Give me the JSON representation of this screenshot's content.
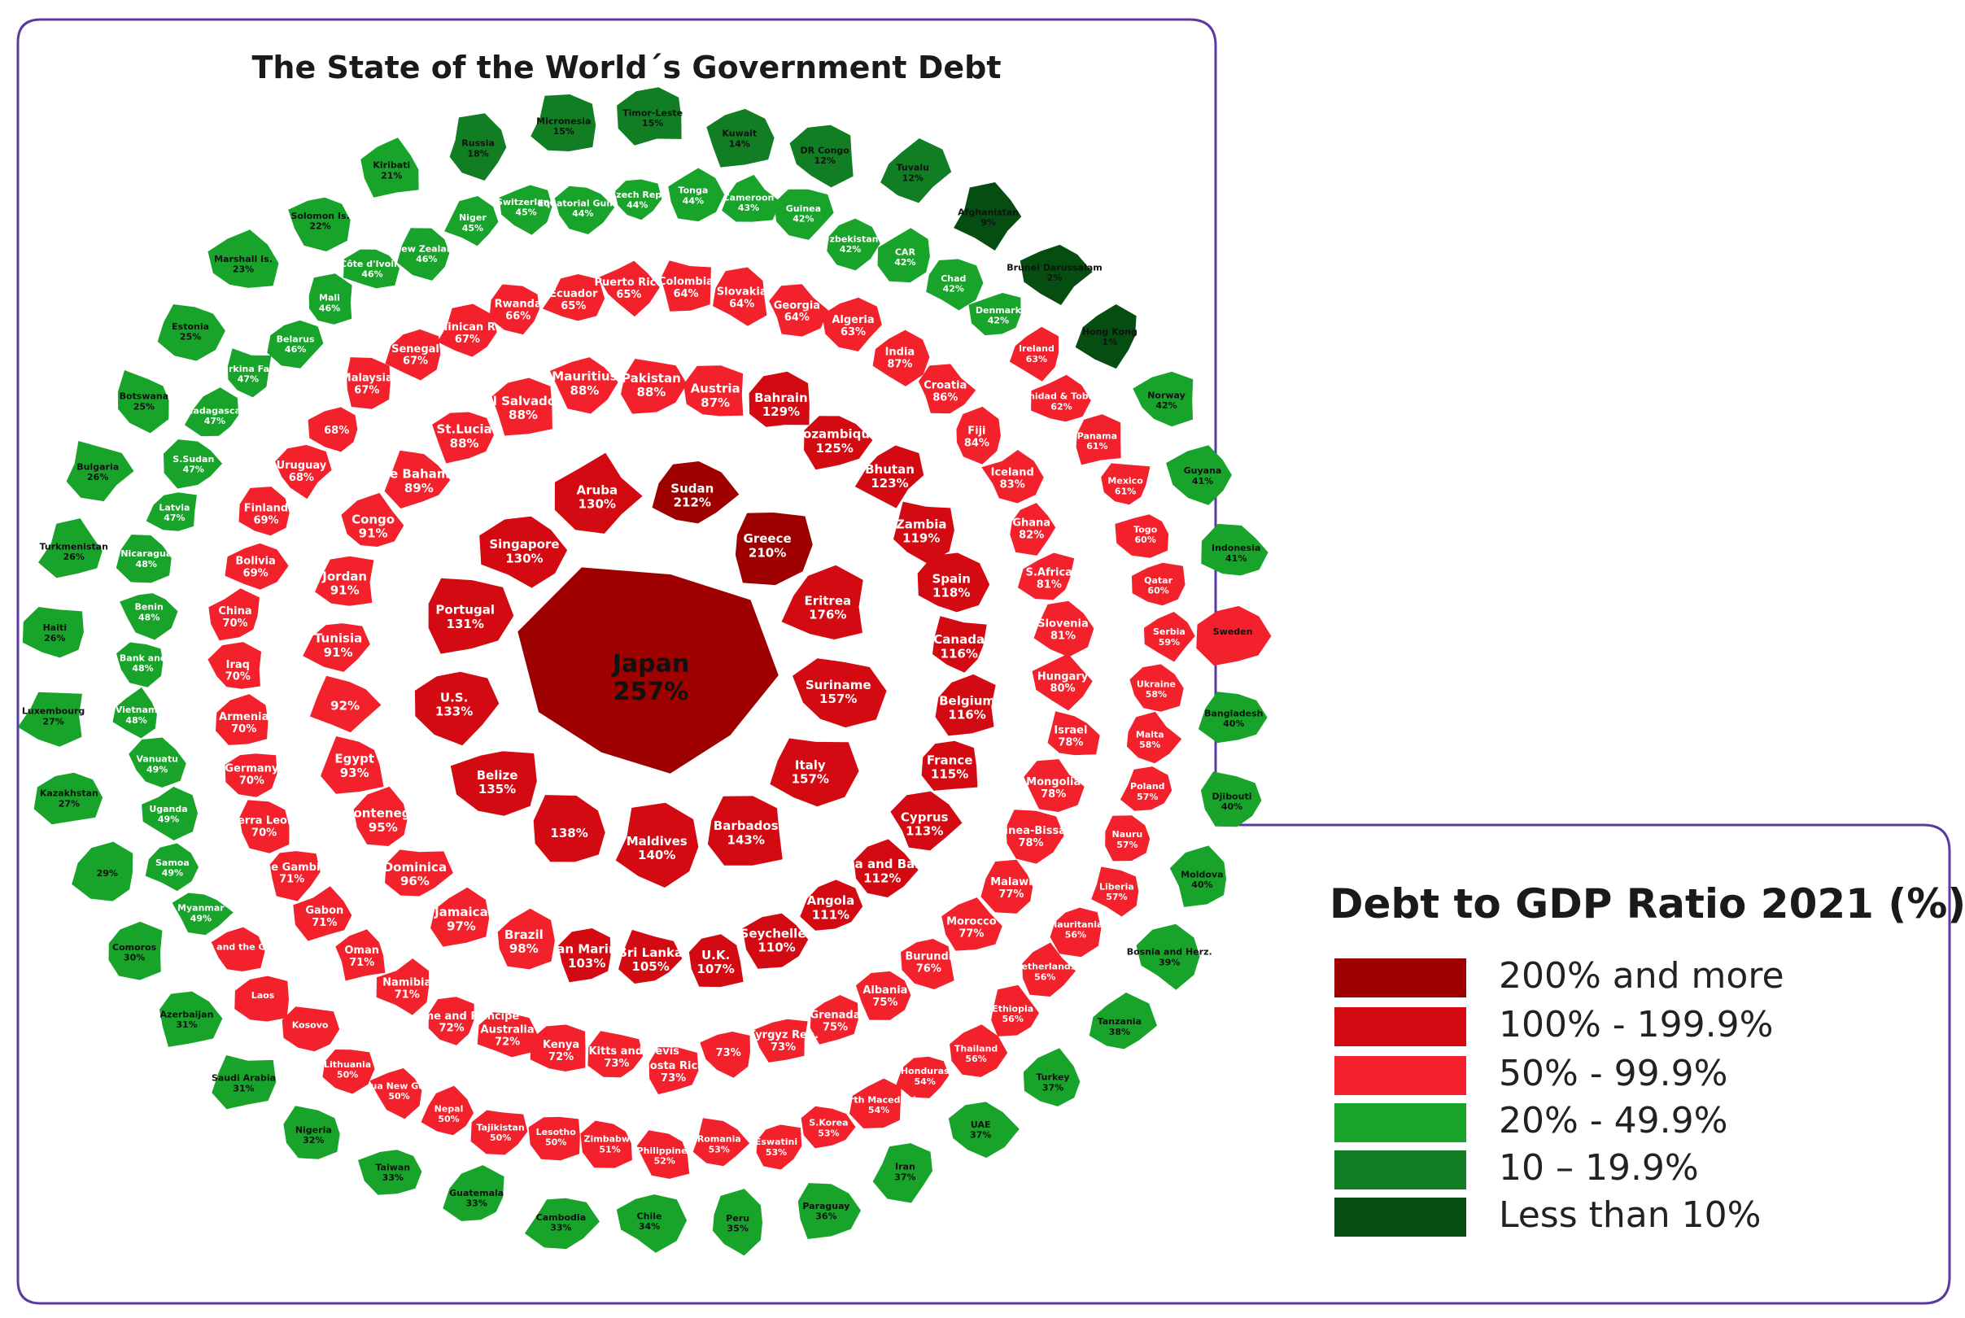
{
  "title": "The State of the World´s Government Debt",
  "legend": {
    "title": "Debt to GDP Ratio 2021 (%)",
    "items": [
      {
        "label": "200% and more",
        "color": "#9e0000"
      },
      {
        "label": "100% - 199.9%",
        "color": "#d40a12"
      },
      {
        "label": "50% - 99.9%",
        "color": "#f2212b"
      },
      {
        "label": "20% - 49.9%",
        "color": "#18a32a"
      },
      {
        "label": "10 – 19.9%",
        "color": "#117e24"
      },
      {
        "label": "Less than 10%",
        "color": "#064d12"
      }
    ]
  },
  "chart_data": {
    "type": "map",
    "title": "The State of the World´s Government Debt",
    "unit": "% of GDP, 2021",
    "countries": [
      {
        "name": "Japan",
        "value": "257%"
      },
      {
        "name": "Sudan",
        "value": "212%"
      },
      {
        "name": "Greece",
        "value": "210%"
      },
      {
        "name": "Eritrea",
        "value": "176%"
      },
      {
        "name": "Suriname",
        "value": "157%"
      },
      {
        "name": "Italy",
        "value": "157%"
      },
      {
        "name": "Barbados",
        "value": "143%"
      },
      {
        "name": "Maldives",
        "value": "140%"
      },
      {
        "name": "",
        "value": "138%"
      },
      {
        "name": "Belize",
        "value": "135%"
      },
      {
        "name": "U.S.",
        "value": "133%"
      },
      {
        "name": "Portugal",
        "value": "131%"
      },
      {
        "name": "Singapore",
        "value": "130%"
      },
      {
        "name": "Aruba",
        "value": "130%"
      },
      {
        "name": "Bahrain",
        "value": "129%"
      },
      {
        "name": "Mozambique",
        "value": "125%"
      },
      {
        "name": "Bhutan",
        "value": "123%"
      },
      {
        "name": "Zambia",
        "value": "119%"
      },
      {
        "name": "Spain",
        "value": "118%"
      },
      {
        "name": "Canada",
        "value": "116%"
      },
      {
        "name": "Belgium",
        "value": "116%"
      },
      {
        "name": "France",
        "value": "115%"
      },
      {
        "name": "Cyprus",
        "value": "113%"
      },
      {
        "name": "Antigua and Barbuda",
        "value": "112%"
      },
      {
        "name": "Angola",
        "value": "111%"
      },
      {
        "name": "Seychelles",
        "value": "110%"
      },
      {
        "name": "U.K.",
        "value": "107%"
      },
      {
        "name": "Sri Lanka",
        "value": "105%"
      },
      {
        "name": "San Marino",
        "value": "103%"
      },
      {
        "name": "Brazil",
        "value": "98%"
      },
      {
        "name": "Jamaica",
        "value": "97%"
      },
      {
        "name": "Dominica",
        "value": "96%"
      },
      {
        "name": "Montenegro",
        "value": "95%"
      },
      {
        "name": "Egypt",
        "value": "93%"
      },
      {
        "name": "",
        "value": "92%"
      },
      {
        "name": "Tunisia",
        "value": "91%"
      },
      {
        "name": "Jordan",
        "value": "91%"
      },
      {
        "name": "Congo",
        "value": "91%"
      },
      {
        "name": "The Bahamas",
        "value": "89%"
      },
      {
        "name": "St.Lucia",
        "value": "88%"
      },
      {
        "name": "El Salvador",
        "value": "88%"
      },
      {
        "name": "Mauritius",
        "value": "88%"
      },
      {
        "name": "Pakistan",
        "value": "88%"
      },
      {
        "name": "Austria",
        "value": "87%"
      },
      {
        "name": "India",
        "value": "87%"
      },
      {
        "name": "Croatia",
        "value": "86%"
      },
      {
        "name": "Fiji",
        "value": "84%"
      },
      {
        "name": "Iceland",
        "value": "83%"
      },
      {
        "name": "Ghana",
        "value": "82%"
      },
      {
        "name": "S.Africa",
        "value": "81%"
      },
      {
        "name": "Slovenia",
        "value": "81%"
      },
      {
        "name": "Hungary",
        "value": "80%"
      },
      {
        "name": "Israel",
        "value": "78%"
      },
      {
        "name": "Mongolia",
        "value": "78%"
      },
      {
        "name": "Guinea-Bissau",
        "value": "78%"
      },
      {
        "name": "Malawi",
        "value": "77%"
      },
      {
        "name": "Morocco",
        "value": "77%"
      },
      {
        "name": "Burundi",
        "value": "76%"
      },
      {
        "name": "Albania",
        "value": "75%"
      },
      {
        "name": "Grenada",
        "value": "75%"
      },
      {
        "name": "Kyrgyz Rep.",
        "value": "73%"
      },
      {
        "name": "",
        "value": "73%"
      },
      {
        "name": "Costa Rica",
        "value": "73%"
      },
      {
        "name": "Saint Kitts and Nevis",
        "value": "73%"
      },
      {
        "name": "Kenya",
        "value": "72%"
      },
      {
        "name": "Australia",
        "value": "72%"
      },
      {
        "name": "Sao Tome and Principe",
        "value": "72%"
      },
      {
        "name": "Namibia",
        "value": "71%"
      },
      {
        "name": "Oman",
        "value": "71%"
      },
      {
        "name": "Gabon",
        "value": "71%"
      },
      {
        "name": "The Gambia",
        "value": "71%"
      },
      {
        "name": "Sierra Leone",
        "value": "70%"
      },
      {
        "name": "Germany",
        "value": "70%"
      },
      {
        "name": "Armenia",
        "value": "70%"
      },
      {
        "name": "Iraq",
        "value": "70%"
      },
      {
        "name": "China",
        "value": "70%"
      },
      {
        "name": "Bolivia",
        "value": "69%"
      },
      {
        "name": "Finland",
        "value": "69%"
      },
      {
        "name": "Uruguay",
        "value": "68%"
      },
      {
        "name": "",
        "value": "68%"
      },
      {
        "name": "Malaysia",
        "value": "67%"
      },
      {
        "name": "Senegal",
        "value": "67%"
      },
      {
        "name": "Dominican Rep.",
        "value": "67%"
      },
      {
        "name": "Rwanda",
        "value": "66%"
      },
      {
        "name": "Ecuador",
        "value": "65%"
      },
      {
        "name": "Puerto Rico",
        "value": "65%"
      },
      {
        "name": "Colombia",
        "value": "64%"
      },
      {
        "name": "Slovakia",
        "value": "64%"
      },
      {
        "name": "Georgia",
        "value": "64%"
      },
      {
        "name": "Algeria",
        "value": "63%"
      },
      {
        "name": "Ireland",
        "value": "63%"
      },
      {
        "name": "Trinidad & Tobago",
        "value": "62%"
      },
      {
        "name": "Panama",
        "value": "61%"
      },
      {
        "name": "Mexico",
        "value": "61%"
      },
      {
        "name": "Togo",
        "value": "60%"
      },
      {
        "name": "Qatar",
        "value": "60%"
      },
      {
        "name": "Serbia",
        "value": "59%"
      },
      {
        "name": "Ukraine",
        "value": "58%"
      },
      {
        "name": "Malta",
        "value": "58%"
      },
      {
        "name": "Poland",
        "value": "57%"
      },
      {
        "name": "Nauru",
        "value": "57%"
      },
      {
        "name": "Liberia",
        "value": "57%"
      },
      {
        "name": "Mauritania",
        "value": "56%"
      },
      {
        "name": "Netherlands",
        "value": "56%"
      },
      {
        "name": "Ethiopia",
        "value": "56%"
      },
      {
        "name": "Thailand",
        "value": "56%"
      },
      {
        "name": "Honduras",
        "value": "54%"
      },
      {
        "name": "North Macedonia",
        "value": "54%"
      },
      {
        "name": "S.Korea",
        "value": "53%"
      },
      {
        "name": "Eswatini",
        "value": "53%"
      },
      {
        "name": "Romania",
        "value": "53%"
      },
      {
        "name": "Philippines",
        "value": "52%"
      },
      {
        "name": "Zimbabwe",
        "value": "51%"
      },
      {
        "name": "Lesotho",
        "value": "50%"
      },
      {
        "name": "Tajikistan",
        "value": "50%"
      },
      {
        "name": "Nepal",
        "value": "50%"
      },
      {
        "name": "Papua New Guinea",
        "value": "50%"
      },
      {
        "name": "Lithuania",
        "value": "50%"
      },
      {
        "name": "Kosovo",
        "value": ""
      },
      {
        "name": "Laos",
        "value": ""
      },
      {
        "name": "St.Vincent and the Grenadines",
        "value": ""
      },
      {
        "name": "Myanmar",
        "value": "49%"
      },
      {
        "name": "Samoa",
        "value": "49%"
      },
      {
        "name": "Uganda",
        "value": "49%"
      },
      {
        "name": "Vanuatu",
        "value": "49%"
      },
      {
        "name": "Vietnam",
        "value": "48%"
      },
      {
        "name": "West Bank and Gaza",
        "value": "48%"
      },
      {
        "name": "Benin",
        "value": "48%"
      },
      {
        "name": "Nicaragua",
        "value": "48%"
      },
      {
        "name": "Latvia",
        "value": "47%"
      },
      {
        "name": "S.Sudan",
        "value": "47%"
      },
      {
        "name": "Madagascar",
        "value": "47%"
      },
      {
        "name": "Burkina Faso",
        "value": "47%"
      },
      {
        "name": "Belarus",
        "value": "46%"
      },
      {
        "name": "Mali",
        "value": "46%"
      },
      {
        "name": "Côte d'Ivoire",
        "value": "46%"
      },
      {
        "name": "New Zealand",
        "value": "46%"
      },
      {
        "name": "Niger",
        "value": "45%"
      },
      {
        "name": "Switzerland",
        "value": "45%"
      },
      {
        "name": "Equatorial Guinea",
        "value": "44%"
      },
      {
        "name": "Czech Rep.",
        "value": "44%"
      },
      {
        "name": "Tonga",
        "value": "44%"
      },
      {
        "name": "Cameroon",
        "value": "43%"
      },
      {
        "name": "Guinea",
        "value": "42%"
      },
      {
        "name": "Uzbekistan",
        "value": "42%"
      },
      {
        "name": "CAR",
        "value": "42%"
      },
      {
        "name": "Chad",
        "value": "42%"
      },
      {
        "name": "Denmark",
        "value": "42%"
      },
      {
        "name": "Norway",
        "value": "42%"
      },
      {
        "name": "Guyana",
        "value": "41%"
      },
      {
        "name": "Indonesia",
        "value": "41%"
      },
      {
        "name": "Sweden",
        "value": ""
      },
      {
        "name": "Bangladesh",
        "value": "40%"
      },
      {
        "name": "Djibouti",
        "value": "40%"
      },
      {
        "name": "Moldova",
        "value": "40%"
      },
      {
        "name": "Bosnia and Herz.",
        "value": "39%"
      },
      {
        "name": "Tanzania",
        "value": "38%"
      },
      {
        "name": "Turkey",
        "value": "37%"
      },
      {
        "name": "UAE",
        "value": "37%"
      },
      {
        "name": "Iran",
        "value": "37%"
      },
      {
        "name": "Paraguay",
        "value": "36%"
      },
      {
        "name": "Peru",
        "value": "35%"
      },
      {
        "name": "Chile",
        "value": "34%"
      },
      {
        "name": "Cambodia",
        "value": "33%"
      },
      {
        "name": "Guatemala",
        "value": "33%"
      },
      {
        "name": "Taiwan",
        "value": "33%"
      },
      {
        "name": "Nigeria",
        "value": "32%"
      },
      {
        "name": "Saudi Arabia",
        "value": "31%"
      },
      {
        "name": "Azerbaijan",
        "value": "31%"
      },
      {
        "name": "Comoros",
        "value": "30%"
      },
      {
        "name": "",
        "value": "29%"
      },
      {
        "name": "Kazakhstan",
        "value": "27%"
      },
      {
        "name": "Luxembourg",
        "value": "27%"
      },
      {
        "name": "Haiti",
        "value": "26%"
      },
      {
        "name": "Turkmenistan",
        "value": "26%"
      },
      {
        "name": "Bulgaria",
        "value": "26%"
      },
      {
        "name": "Botswana",
        "value": "25%"
      },
      {
        "name": "Estonia",
        "value": "25%"
      },
      {
        "name": "Marshall Is.",
        "value": "23%"
      },
      {
        "name": "Solomon Is.",
        "value": "22%"
      },
      {
        "name": "Kiribati",
        "value": "21%"
      },
      {
        "name": "Russia",
        "value": "18%"
      },
      {
        "name": "Micronesia",
        "value": "15%"
      },
      {
        "name": "Timor-Leste",
        "value": "15%"
      },
      {
        "name": "Kuwait",
        "value": "14%"
      },
      {
        "name": "DR Congo",
        "value": "12%"
      },
      {
        "name": "Tuvalu",
        "value": "12%"
      },
      {
        "name": "Afghanistan",
        "value": "9%"
      },
      {
        "name": "Brunei Darussalam",
        "value": "2%"
      },
      {
        "name": "Hong Kong",
        "value": "1%"
      }
    ]
  }
}
